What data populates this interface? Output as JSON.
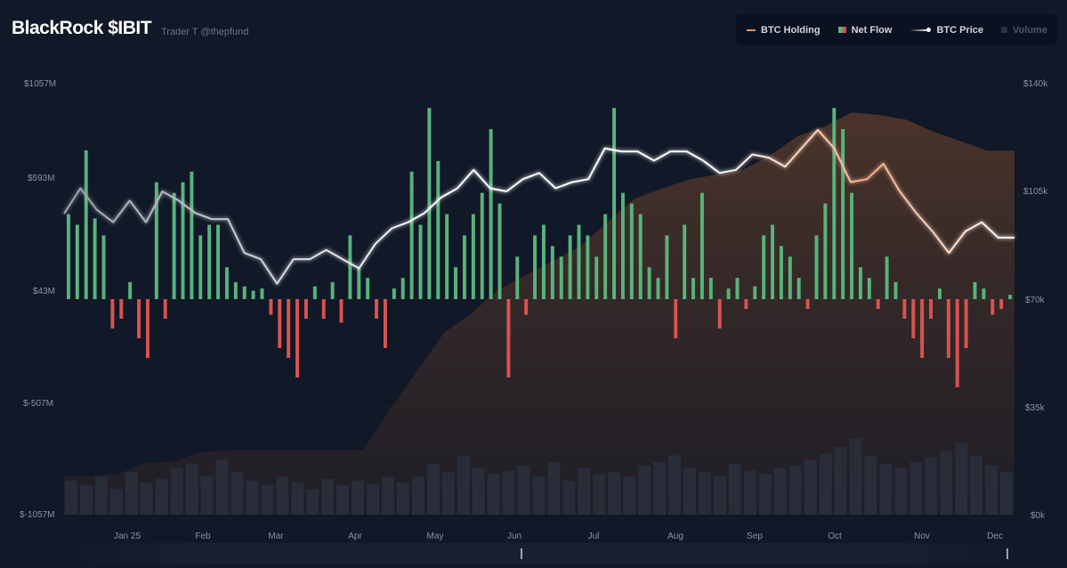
{
  "header": {
    "title": "BlackRock $IBIT",
    "author": "Trader T @thepfund"
  },
  "legend": [
    {
      "label": "BTC Holding",
      "color": "#f4935c"
    },
    {
      "label": "Net Flow",
      "color": "#58b37a"
    },
    {
      "label": "BTC Price",
      "color": "#ffffff"
    },
    {
      "label": "Volume",
      "color": "#2a3140"
    }
  ],
  "chart_data": {
    "type": "bar",
    "title": "BlackRock $IBIT",
    "left_axis": {
      "ticks": [
        "$1057M",
        "$593M",
        "$43M",
        "$-507M",
        "$-1057M"
      ],
      "range": [
        -1057,
        1057
      ],
      "unit": "$M"
    },
    "right_axis": {
      "ticks": [
        "$140k",
        "$105k",
        "$70k",
        "$35k",
        "$0k"
      ],
      "range": [
        0,
        140
      ],
      "unit": "$k"
    },
    "x_ticks": [
      "Jan 25",
      "Feb",
      "Mar",
      "Apr",
      "May",
      "Jun",
      "Jul",
      "Aug",
      "Sep",
      "Oct",
      "Nov",
      "Dec"
    ],
    "colors": {
      "positive": "#58b37a",
      "negative": "#d9534f",
      "price": "#ffffff",
      "price_hot": "#f4935c",
      "holding": "#7a4a2c",
      "volume": "#2a3140"
    },
    "series": [
      {
        "name": "Net Flow",
        "unit": "$M",
        "values": [
          400,
          350,
          700,
          380,
          300,
          -150,
          -100,
          80,
          -200,
          -300,
          550,
          -100,
          500,
          550,
          600,
          300,
          350,
          350,
          150,
          80,
          60,
          40,
          50,
          -80,
          -250,
          -300,
          -400,
          -100,
          60,
          -100,
          80,
          -120,
          300,
          150,
          100,
          -100,
          -250,
          50,
          100,
          600,
          350,
          900,
          650,
          400,
          150,
          300,
          400,
          500,
          800,
          450,
          -400,
          200,
          -80,
          300,
          350,
          250,
          200,
          300,
          350,
          300,
          200,
          400,
          900,
          500,
          450,
          400,
          150,
          100,
          300,
          -200,
          350,
          100,
          500,
          100,
          -150,
          50,
          100,
          -50,
          60,
          300,
          350,
          250,
          200,
          100,
          -50,
          300,
          450,
          900,
          800,
          500,
          150,
          100,
          -50,
          200,
          80,
          -100,
          -200,
          -300,
          -100,
          50,
          -300,
          -450,
          -250,
          80,
          50,
          -80,
          -50,
          20
        ]
      },
      {
        "name": "BTC Price",
        "unit": "$k",
        "values": [
          97.8,
          106,
          99,
          95,
          102,
          95,
          105,
          102,
          98,
          96,
          96,
          85,
          83,
          75,
          83,
          83,
          86,
          83,
          80,
          88,
          93,
          95,
          98,
          103,
          106,
          112,
          106,
          105,
          109,
          111,
          106,
          108,
          109,
          119,
          118,
          118,
          115,
          118,
          118,
          115,
          111,
          112,
          117,
          116,
          113,
          119,
          125,
          119,
          108,
          109,
          114,
          105,
          98,
          92,
          85,
          92,
          95,
          90,
          90
        ]
      },
      {
        "name": "BTC Holding",
        "unit": "k BTC",
        "values": [
          80,
          80,
          85,
          108,
          110,
          130,
          135,
          135,
          135,
          135,
          135,
          135,
          220,
          300,
          380,
          420,
          470,
          500,
          530,
          560,
          610,
          660,
          680,
          700,
          710,
          720,
          750,
          790,
          810,
          840,
          835,
          825,
          800,
          780,
          760,
          760
        ]
      },
      {
        "name": "Volume",
        "unit": "relative",
        "values": [
          40,
          35,
          45,
          30,
          50,
          38,
          42,
          55,
          60,
          45,
          65,
          50,
          40,
          35,
          45,
          38,
          30,
          42,
          35,
          40,
          36,
          44,
          38,
          45,
          60,
          50,
          70,
          55,
          48,
          52,
          58,
          45,
          62,
          40,
          55,
          48,
          50,
          45,
          58,
          62,
          70,
          55,
          50,
          45,
          60,
          52,
          48,
          55,
          58,
          65,
          72,
          80,
          90,
          70,
          60,
          55,
          62,
          68,
          75,
          85,
          70,
          58,
          50
        ]
      }
    ]
  }
}
